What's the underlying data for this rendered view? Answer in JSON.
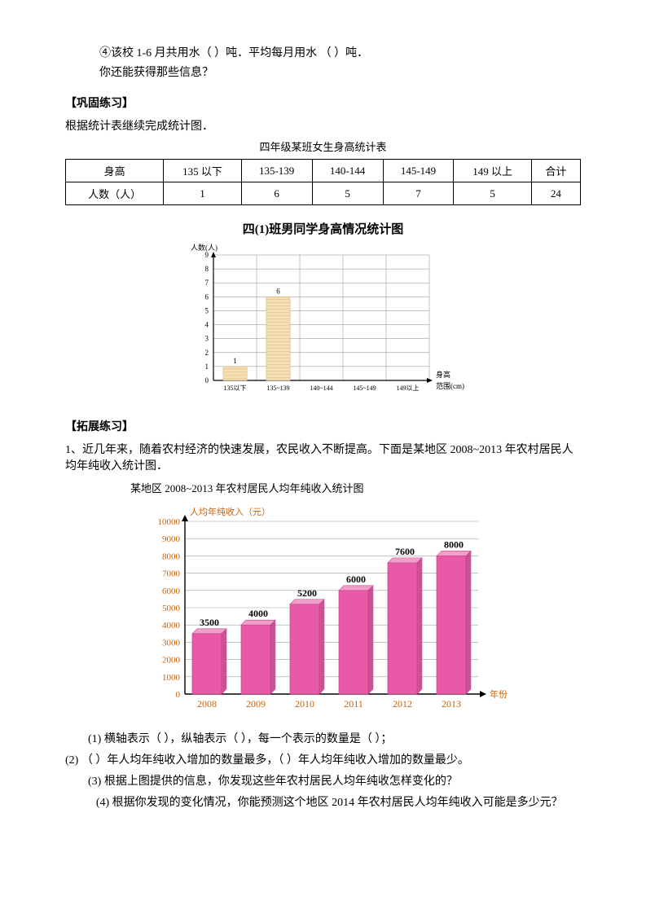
{
  "top": {
    "q4": "④该校 1-6 月共用水（  ）吨．平均每月用水 （    ）吨．",
    "q5": "你还能获得那些信息？"
  },
  "section1": {
    "title": "【巩固练习】",
    "intro": "根据统计表继续完成统计图．",
    "table_caption": "四年级某班女生身高统计表",
    "headers": [
      "身高",
      "135 以下",
      "135-139",
      "140-144",
      "145-149",
      "149 以上",
      "合计"
    ],
    "row_label": "人数（人）",
    "values": [
      "1",
      "6",
      "5",
      "7",
      "5",
      "24"
    ]
  },
  "chart1": {
    "title": "四(1)班男同学身高情况统计图",
    "ylabel": "人数(人)",
    "xlabel_line1": "身高",
    "xlabel_line2": "范围(cm)",
    "yticks": [
      "0",
      "1",
      "2",
      "3",
      "4",
      "5",
      "6",
      "7",
      "8",
      "9"
    ],
    "xticks": [
      "135以下",
      "135~139",
      "140~144",
      "145~149",
      "149以上"
    ],
    "bar_values": [
      1,
      6,
      null,
      null,
      null
    ],
    "bar_labels": [
      "1",
      "6",
      "",
      "",
      ""
    ],
    "bar_fill": "#f5deb3",
    "bar_stroke": "#d4b07a",
    "grid_color": "#888888",
    "axis_color": "#000000",
    "bg": "#ffffff",
    "font_size": 9
  },
  "section2": {
    "title": "【拓展练习】",
    "intro": "1、近几年来，随着农村经济的快速发展，农民收入不断提高。下面是某地区 2008~2013 年农村居民人均年纯收入统计图．"
  },
  "chart2": {
    "title": "某地区 2008~2013 年农村居民人均年纯收入统计图",
    "ylabel": "人均年纯收入（元）",
    "xlabel": "年份",
    "yticks": [
      "0",
      "1000",
      "2000",
      "3000",
      "4000",
      "5000",
      "6000",
      "7000",
      "8000",
      "9000",
      "10000"
    ],
    "xticks": [
      "2008",
      "2009",
      "2010",
      "2011",
      "2012",
      "2013"
    ],
    "values": [
      3500,
      4000,
      5200,
      6000,
      7600,
      8000
    ],
    "value_labels": [
      "3500",
      "4000",
      "5200",
      "6000",
      "7600",
      "8000"
    ],
    "bar_fill": "#e85aa8",
    "bar_stroke": "#c8408a",
    "bar_top_fill": "#f0a0c8",
    "grid_color": "#a0a0a0",
    "axis_color": "#000000",
    "label_color": "#d06000",
    "bg": "#ffffff",
    "font_size": 11,
    "ymax": 10000
  },
  "questions": {
    "q1": "(1) 横轴表示（      ），纵轴表示（      ），每一个表示的数量是（      ）；",
    "q2": "(2) （      ）年人均年纯收入增加的数量最多，（      ）年人均年纯收入增加的数量最少。",
    "q3": "(3) 根据上图提供的信息，你发现这些年农村居民人均年纯收怎样变化的？",
    "q4": "(4) 根据你发现的变化情况，你能预测这个地区 2014 年农村居民人均年纯收入可能是多少元？"
  }
}
